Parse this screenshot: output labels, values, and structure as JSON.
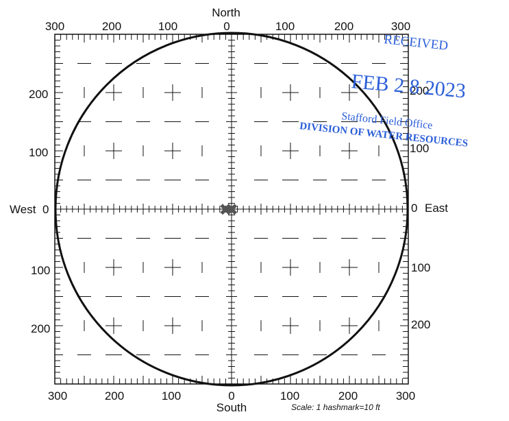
{
  "compass": {
    "north": "North",
    "south": "South",
    "west": "West",
    "east": "East",
    "west_value": "0",
    "east_value": "0"
  },
  "top_scale": [
    "300",
    "200",
    "100",
    "0",
    "100",
    "200",
    "300"
  ],
  "bottom_scale": [
    "300",
    "200",
    "100",
    "0",
    "100",
    "200",
    "300"
  ],
  "left_scale": [
    "200",
    "100",
    "100",
    "200"
  ],
  "right_scale": [
    "200",
    "100",
    "100",
    "200"
  ],
  "scale_note": "Scale:  1 hashmark=10 ft",
  "stamp": {
    "received": "RECEIVED",
    "date": "FEB 2 8 2023",
    "office": "Stafford Field Office",
    "division": "DIVISION OF WATER RESOURCES",
    "color": "#2b5fd8"
  },
  "markers": [
    {
      "symbol": "✖",
      "x_ft": -10,
      "y_ft": 0
    },
    {
      "symbol": "✖",
      "x_ft": 0,
      "y_ft": 0
    }
  ],
  "circle_radius_ft": 300
}
